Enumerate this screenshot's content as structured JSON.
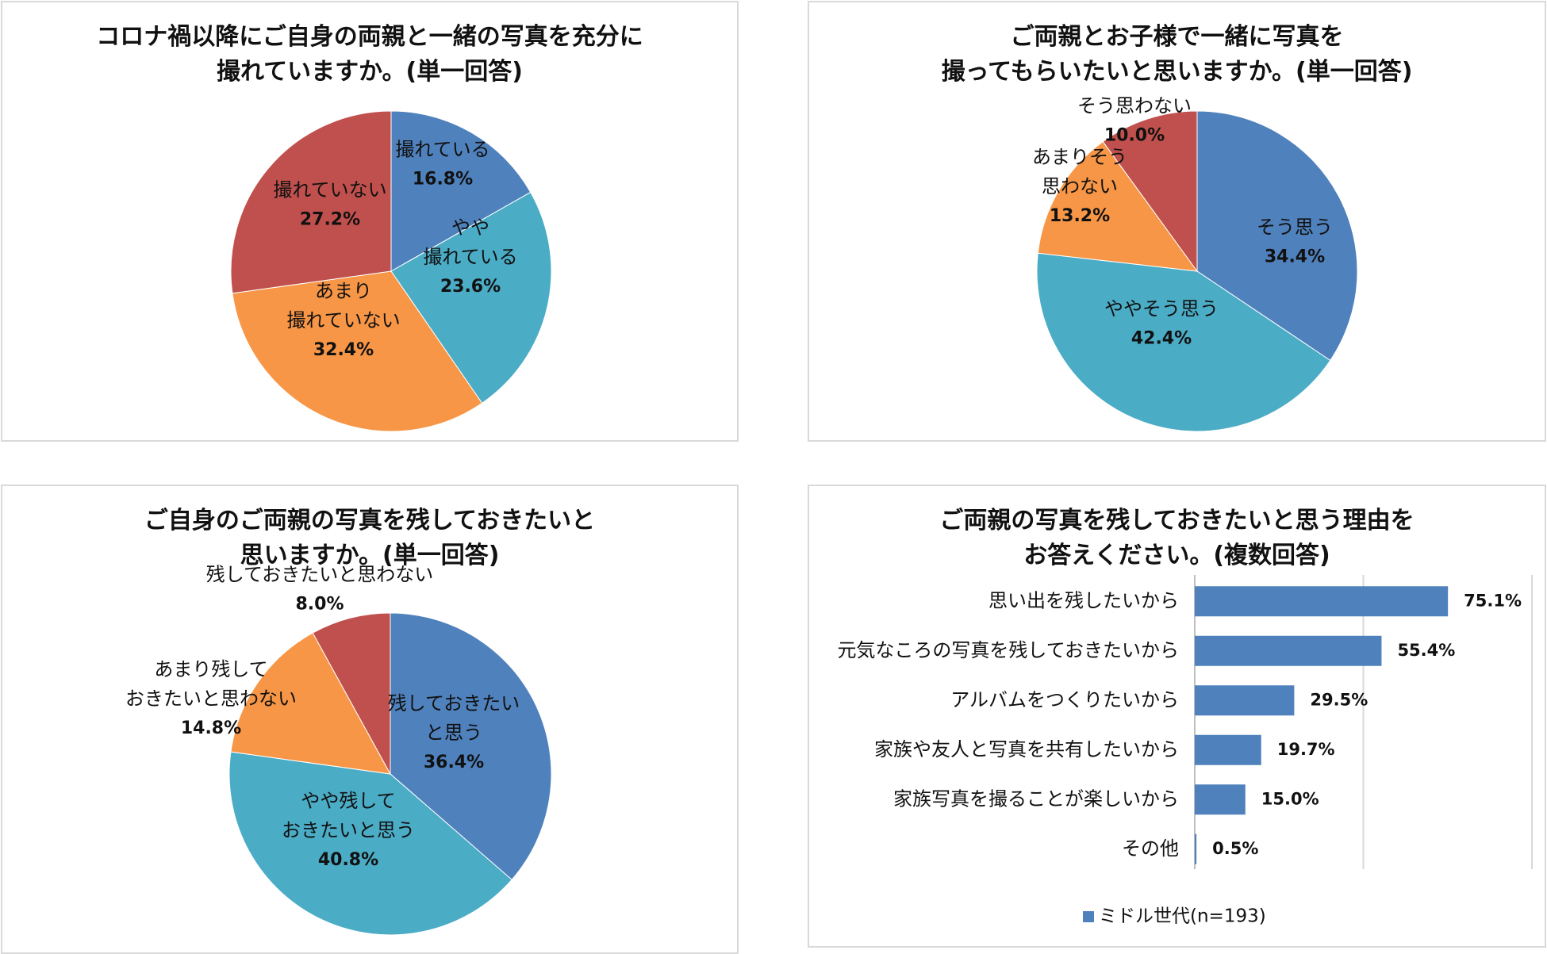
{
  "chart_data": [
    {
      "type": "pie",
      "title_lines": [
        "コロナ禍以降にご自身の両親と一緒の写真を充分に",
        "撮れていますか。(単一回答)"
      ],
      "slices": [
        {
          "label_lines": [
            "撮れている"
          ],
          "value": 16.8,
          "value_label": "16.8%",
          "color": "#4f81bd"
        },
        {
          "label_lines": [
            "やや",
            "撮れている"
          ],
          "value": 23.6,
          "value_label": "23.6%",
          "color": "#4bacc6"
        },
        {
          "label_lines": [
            "あまり",
            "撮れていない"
          ],
          "value": 32.4,
          "value_label": "32.4%",
          "color": "#f79646"
        },
        {
          "label_lines": [
            "撮れていない"
          ],
          "value": 27.2,
          "value_label": "27.2%",
          "color": "#c0504d"
        }
      ]
    },
    {
      "type": "pie",
      "title_lines": [
        "ご両親とお子様で一緒に写真を",
        "撮ってもらいたいと思いますか。(単一回答)"
      ],
      "slices": [
        {
          "label_lines": [
            "そう思う"
          ],
          "value": 34.4,
          "value_label": "34.4%",
          "color": "#4f81bd"
        },
        {
          "label_lines": [
            "ややそう思う"
          ],
          "value": 42.4,
          "value_label": "42.4%",
          "color": "#4bacc6"
        },
        {
          "label_lines": [
            "あまりそう",
            "思わない"
          ],
          "value": 13.2,
          "value_label": "13.2%",
          "color": "#f79646"
        },
        {
          "label_lines": [
            "そう思わない"
          ],
          "value": 10.0,
          "value_label": "10.0%",
          "color": "#c0504d"
        }
      ]
    },
    {
      "type": "pie",
      "title_lines": [
        "ご自身のご両親の写真を残しておきたいと",
        "思いますか。(単一回答)"
      ],
      "slices": [
        {
          "label_lines": [
            "残しておきたい",
            "と思う"
          ],
          "value": 36.4,
          "value_label": "36.4%",
          "color": "#4f81bd"
        },
        {
          "label_lines": [
            "やや残して",
            "おきたいと思う"
          ],
          "value": 40.8,
          "value_label": "40.8%",
          "color": "#4bacc6"
        },
        {
          "label_lines": [
            "あまり残して",
            "おきたいと思わない"
          ],
          "value": 14.8,
          "value_label": "14.8%",
          "color": "#f79646"
        },
        {
          "label_lines": [
            "残しておきたいと思わない"
          ],
          "value": 8.0,
          "value_label": "8.0%",
          "color": "#c0504d"
        }
      ]
    },
    {
      "type": "bar",
      "orientation": "horizontal",
      "title_lines": [
        "ご両親の写真を残しておきたいと思う理由を",
        "お答えください。(複数回答)"
      ],
      "categories": [
        "思い出を残したいから",
        "元気なころの写真を残しておきたいから",
        "アルバムをつくりたいから",
        "家族や友人と写真を共有したいから",
        "家族写真を撮ることが楽しいから",
        "その他"
      ],
      "series": [
        {
          "name": "ミドル世代(n=193)",
          "values": [
            75.1,
            55.4,
            29.5,
            19.7,
            15.0,
            0.5
          ],
          "value_labels": [
            "75.1%",
            "55.4%",
            "29.5%",
            "19.7%",
            "15.0%",
            "0.5%"
          ],
          "color": "#4f81bd"
        }
      ],
      "xlim": [
        0,
        100
      ],
      "legend_position": "bottom",
      "grid": true
    }
  ]
}
